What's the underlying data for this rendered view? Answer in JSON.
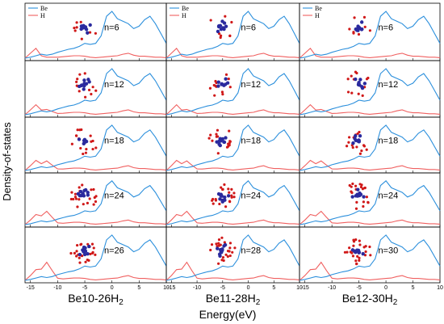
{
  "figure": {
    "ylabel": "Density-of-states",
    "xlabel": "Energy(eV)",
    "x_ticks": [
      "-15",
      "-10",
      "-5",
      "0",
      "5",
      "10"
    ],
    "legend": [
      "Be",
      "H"
    ],
    "colors": {
      "Be": "#2b8fdc",
      "H": "#f06060",
      "atom_be": "#2a2a9e",
      "atom_h": "#d01818"
    }
  },
  "chart_data": {
    "type": "line",
    "xlim": [
      -16,
      10
    ],
    "columns": [
      {
        "title_base": "Be10-26H",
        "title_sub": "2",
        "n_labels": [
          "n=6",
          "n=12",
          "n=18",
          "n=24",
          "n=26"
        ]
      },
      {
        "title_base": "Be11-28H",
        "title_sub": "2",
        "n_labels": [
          "n=6",
          "n=12",
          "n=18",
          "n=24",
          "n=28"
        ]
      },
      {
        "title_base": "Be12-30H",
        "title_sub": "2",
        "n_labels": [
          "n=6",
          "n=12",
          "n=18",
          "n=24",
          "n=30"
        ]
      }
    ],
    "grid": false,
    "legend_position": "top-left",
    "series": [
      {
        "name": "Be",
        "x": [
          -16,
          -15,
          -14,
          -13,
          -12,
          -11,
          -10,
          -9,
          -8,
          -7,
          -6,
          -5,
          -4,
          -3,
          -2,
          -1,
          0,
          1,
          2,
          3,
          4,
          5,
          6,
          7,
          8,
          9,
          10
        ],
        "y": [
          0,
          0.02,
          0.05,
          0.08,
          0.06,
          0.08,
          0.12,
          0.15,
          0.18,
          0.2,
          0.24,
          0.3,
          0.28,
          0.3,
          0.45,
          0.85,
          0.95,
          0.8,
          0.75,
          0.7,
          0.6,
          0.65,
          0.78,
          0.85,
          0.7,
          0.5,
          0.3
        ]
      },
      {
        "name": "H",
        "x": [
          -16,
          -15,
          -14,
          -13,
          -12,
          -11,
          -10,
          -9,
          -8,
          -7,
          -6,
          -5,
          -4,
          -3,
          -2,
          -1,
          0,
          1,
          2,
          3,
          4,
          5,
          6,
          7,
          8,
          9,
          10
        ],
        "y": [
          0,
          0.1,
          0.2,
          0.05,
          0.02,
          0.02,
          0.02,
          0.03,
          0.04,
          0.05,
          0.05,
          0.04,
          0.02,
          0.01,
          0.02,
          0.03,
          0.04,
          0.05,
          0.08,
          0.1,
          0.06,
          0.04,
          0.04,
          0.03,
          0.02,
          0.02,
          0.01
        ]
      }
    ]
  }
}
